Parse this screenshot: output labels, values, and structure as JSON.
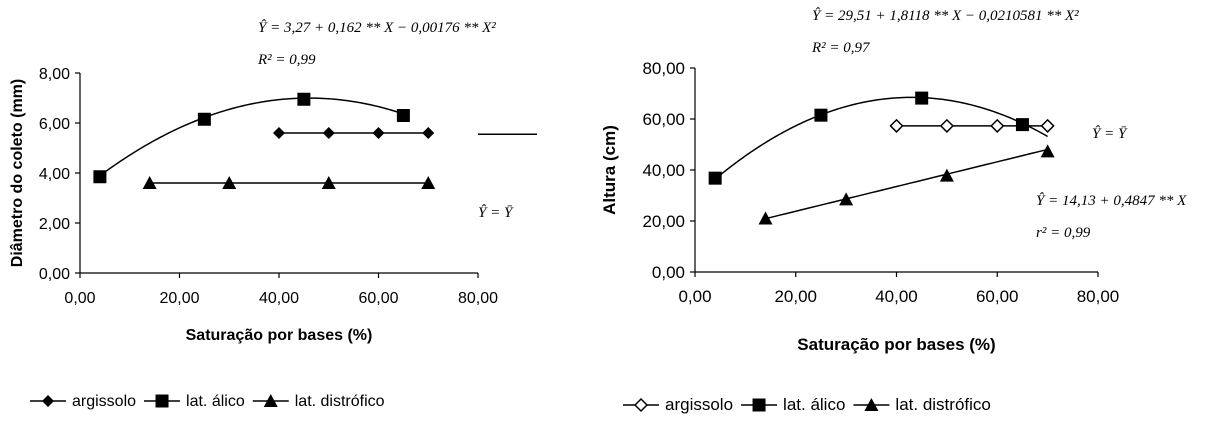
{
  "chart_data": [
    {
      "type": "line",
      "xlabel": "Saturação por bases (%)",
      "ylabel": "Diâmetro do coleto (mm)",
      "xlim": [
        0,
        80
      ],
      "ylim": [
        0,
        8
      ],
      "x_ticks": [
        "0,00",
        "20,00",
        "40,00",
        "60,00",
        "80,00"
      ],
      "y_ticks": [
        "0,00",
        "2,00",
        "4,00",
        "6,00",
        "8,00"
      ],
      "grid": false,
      "legend_position": "bottom",
      "series": [
        {
          "name": "argissolo",
          "marker": "diamond",
          "x": [
            40,
            50,
            60,
            70
          ],
          "y": [
            5.6,
            5.6,
            5.6,
            5.6
          ],
          "line": "flat"
        },
        {
          "name": "lat. álico",
          "marker": "square",
          "x": [
            4,
            25,
            45,
            65
          ],
          "y": [
            3.85,
            6.15,
            6.95,
            6.3
          ],
          "line": "quadratic",
          "coef": [
            3.27,
            0.162,
            -0.00176
          ],
          "line_x": [
            4,
            65
          ]
        },
        {
          "name": "lat. distrófico",
          "marker": "triangle",
          "x": [
            14,
            30,
            50,
            70
          ],
          "y": [
            3.6,
            3.6,
            3.6,
            3.6
          ],
          "line": "flat"
        }
      ],
      "annotations": [
        {
          "id": "eq",
          "lines": [
            "Ŷ = 3,27 + 0,162 ** X − 0,00176 ** X²",
            "R² = 0,99"
          ]
        },
        {
          "id": "mean",
          "lines": [
            "Ŷ = Ȳ"
          ]
        }
      ],
      "extra_line_y": 5.55
    },
    {
      "type": "line",
      "xlabel": "Saturação por bases (%)",
      "ylabel": "Altura (cm)",
      "xlim": [
        0,
        80
      ],
      "ylim": [
        0,
        80
      ],
      "x_ticks": [
        "0,00",
        "20,00",
        "40,00",
        "60,00",
        "80,00"
      ],
      "y_ticks": [
        "0,00",
        "20,00",
        "40,00",
        "60,00",
        "80,00"
      ],
      "grid": false,
      "legend_position": "bottom",
      "series": [
        {
          "name": "argissolo",
          "marker": "diamond-open",
          "x": [
            40,
            50,
            60,
            70
          ],
          "y": [
            57.3,
            57.3,
            57.3,
            57.3
          ],
          "line": "flat"
        },
        {
          "name": "lat. álico",
          "marker": "square",
          "x": [
            4,
            25,
            45,
            65
          ],
          "y": [
            36.8,
            61.5,
            68.2,
            57.8
          ],
          "line": "quadratic",
          "coef": [
            29.51,
            1.8118,
            -0.0210581
          ],
          "line_x": [
            4,
            70
          ]
        },
        {
          "name": "lat. distrófico",
          "marker": "triangle",
          "x": [
            14,
            30,
            50,
            70
          ],
          "y": [
            21.0,
            28.5,
            37.8,
            47.3
          ],
          "line": "linear",
          "coef": [
            14.13,
            0.4847
          ]
        }
      ],
      "annotations": [
        {
          "id": "eq",
          "lines": [
            "Ŷ = 29,51 + 1,8118 ** X − 0,0210581 ** X²",
            "R² = 0,97"
          ]
        },
        {
          "id": "mean",
          "lines": [
            "Ŷ = Ȳ"
          ]
        },
        {
          "id": "lin",
          "lines": [
            "Ŷ = 14,13 + 0,4847 ** X",
            "r² = 0,99"
          ]
        }
      ]
    }
  ]
}
